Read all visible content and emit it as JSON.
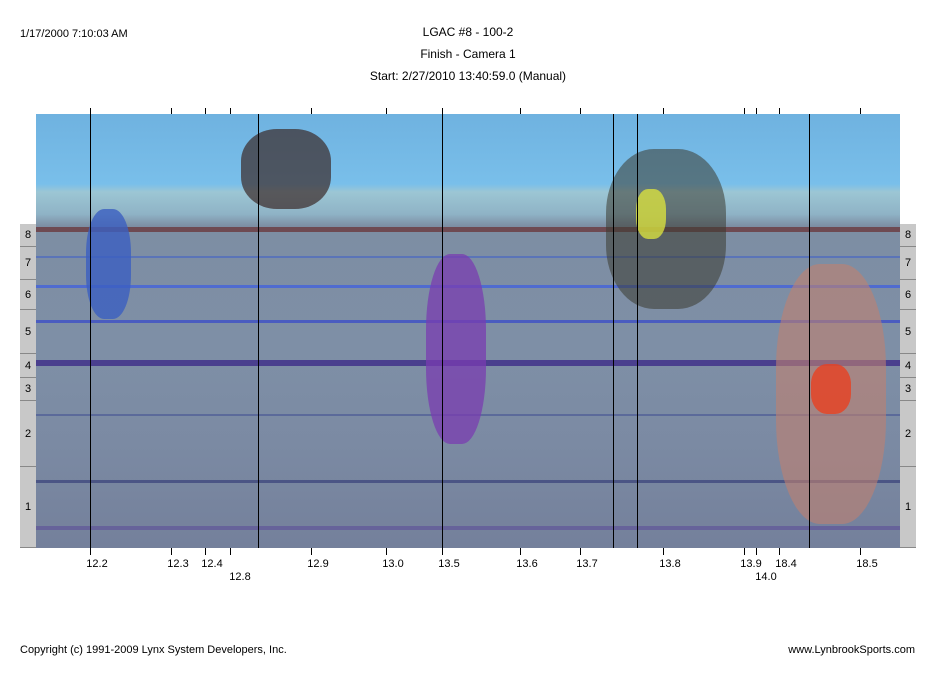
{
  "header": {
    "printed_at": "1/17/2000 7:10:03 AM",
    "title": "LGAC #8 - 100-2",
    "subtitle": "Finish - Camera 1",
    "start": "Start: 2/27/2010 13:40:59.0 (Manual)"
  },
  "lanes": [
    "8",
    "7",
    "6",
    "5",
    "4",
    "3",
    "2",
    "1"
  ],
  "time_ticks": [
    "12.2",
    "12.3",
    "12.4",
    "12.8",
    "12.9",
    "13.0",
    "13.5",
    "13.6",
    "13.7",
    "13.8",
    "13.9",
    "14.0",
    "18.4",
    "18.5"
  ],
  "footer": {
    "copyright": "Copyright (c) 1991-2009 Lynx System Developers, Inc.",
    "website": "www.LynbrookSports.com"
  }
}
